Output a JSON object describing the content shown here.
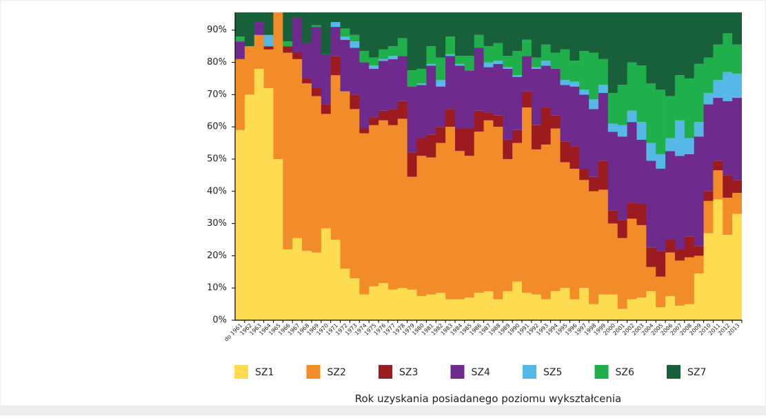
{
  "chart_data": {
    "type": "stacked_bar",
    "x_label": "Rok uzyskania posiadanego poziomu wykształcenia",
    "categories": [
      "do 1961",
      "1962",
      "1963",
      "1964",
      "1965",
      "1966",
      "1967",
      "1968",
      "1969",
      "1970",
      "1971",
      "1972",
      "1973",
      "1974",
      "1975",
      "1976",
      "1977",
      "1978",
      "1979",
      "1980",
      "1981",
      "1982",
      "1983",
      "1984",
      "1985",
      "1986",
      "1987",
      "1988",
      "1989",
      "1990",
      "1991",
      "1992",
      "1993",
      "1994",
      "1995",
      "1996",
      "1997",
      "1998",
      "1999",
      "2000",
      "2001",
      "2002",
      "2003",
      "2004",
      "2005",
      "2006",
      "2007",
      "2008",
      "2009",
      "2010",
      "2011",
      "2012",
      "2013"
    ],
    "ylim": [
      0,
      95.5
    ],
    "yticks": [
      {
        "value": 0,
        "label": "0%"
      },
      {
        "value": 10,
        "label": "10%"
      },
      {
        "value": 20,
        "label": "20%"
      },
      {
        "value": 30,
        "label": "30%"
      },
      {
        "value": 40,
        "label": "40%"
      },
      {
        "value": 50,
        "label": "50%"
      },
      {
        "value": 60,
        "label": "60%"
      },
      {
        "value": 70,
        "label": "70%"
      },
      {
        "value": 80,
        "label": "80%"
      },
      {
        "value": 90,
        "label": "90%"
      }
    ],
    "series": [
      {
        "name": "SZ1",
        "color": "#fddc4f",
        "values": [
          59,
          70,
          78,
          72,
          50,
          22,
          25.5,
          21.5,
          21,
          28.5,
          25,
          16,
          13,
          8,
          10.5,
          11.5,
          9.5,
          10,
          9.5,
          7.5,
          8,
          8.5,
          6.5,
          6.5,
          7,
          8.5,
          9,
          6.5,
          9,
          12,
          8.5,
          8,
          6.5,
          9,
          10,
          6.5,
          10,
          5,
          8,
          8,
          3.5,
          6.5,
          7,
          9,
          4,
          7.5,
          4.5,
          5,
          14.5,
          27,
          37.5,
          26.5,
          33
        ]
      },
      {
        "name": "SZ2",
        "color": "#f28c28",
        "values": [
          22,
          15,
          10.5,
          12,
          50,
          61,
          55.5,
          52,
          48.5,
          35.5,
          51,
          55,
          52.5,
          50,
          50,
          50.5,
          51,
          52.5,
          35,
          43.5,
          42.5,
          46.5,
          53.5,
          46,
          44,
          50,
          53,
          53.5,
          41,
          43,
          57.5,
          45,
          48,
          50.5,
          39,
          40.5,
          33.5,
          35,
          32.5,
          22,
          22,
          25,
          22.5,
          7.5,
          9.5,
          13.5,
          14,
          14.5,
          5.5,
          10,
          9,
          11.5,
          6.5
        ]
      },
      {
        "name": "SZ3",
        "color": "#9b1b1f",
        "values": [
          0,
          0,
          0,
          1,
          0,
          2,
          2,
          1.5,
          2.5,
          3,
          6,
          0,
          4.5,
          1.5,
          2.5,
          3,
          5,
          5.5,
          7.5,
          5.5,
          7,
          5,
          5.5,
          7,
          8.5,
          6.5,
          2.5,
          3.5,
          6,
          4,
          5,
          7.5,
          11.5,
          4,
          6.5,
          7,
          3.5,
          4.5,
          9,
          4,
          5.5,
          5,
          6.5,
          6,
          8,
          4,
          3.5,
          6.5,
          3,
          3,
          3,
          7,
          4
        ]
      },
      {
        "name": "SZ4",
        "color": "#6f2a8e",
        "values": [
          5.5,
          0,
          4,
          0,
          0,
          0,
          11,
          11,
          19,
          15.5,
          9,
          16,
          14.5,
          20.5,
          15,
          15.5,
          15.5,
          14,
          20.5,
          16.5,
          21.5,
          12.5,
          16.5,
          19.5,
          18,
          19.5,
          14,
          16,
          22,
          16.5,
          11,
          17.5,
          13,
          14.5,
          17.5,
          18.5,
          23,
          21,
          21,
          24.5,
          26,
          25,
          20,
          27,
          25.5,
          27.5,
          29,
          25.5,
          34,
          27,
          19.5,
          23,
          25.5
        ]
      },
      {
        "name": "SZ5",
        "color": "#55b8e6",
        "values": [
          0,
          0,
          0,
          3.5,
          0,
          0,
          0,
          0,
          0,
          0,
          1.5,
          1,
          2,
          0,
          1,
          0.5,
          1,
          0,
          0,
          0.5,
          0.5,
          2,
          0.5,
          0.5,
          0,
          0,
          1.5,
          1,
          0.5,
          0.5,
          0,
          0.5,
          1.5,
          0,
          1.5,
          1.5,
          1.5,
          3,
          2.5,
          2.5,
          3.5,
          3.5,
          5.5,
          5.5,
          4.5,
          4,
          11,
          5,
          4.5,
          3.5,
          5.5,
          9,
          7.5
        ]
      },
      {
        "name": "SZ6",
        "color": "#20b04b",
        "values": [
          1.5,
          0,
          0,
          0,
          0,
          1.5,
          0,
          0,
          0.5,
          0,
          0,
          2.5,
          2,
          3.5,
          2.5,
          3,
          3,
          5.5,
          5,
          4.5,
          5.5,
          7,
          5.5,
          2.5,
          4.5,
          4,
          5,
          5.5,
          3.5,
          7.5,
          5,
          3,
          5,
          5,
          9.5,
          6.5,
          12,
          14.5,
          8,
          9.5,
          12.5,
          15,
          17.5,
          18.5,
          20,
          13,
          14,
          18.5,
          18,
          11,
          11,
          12,
          9
        ]
      },
      {
        "name": "SZ7",
        "color": "#17603a",
        "values": [
          12,
          15,
          7.5,
          11.5,
          0,
          13.5,
          6,
          14,
          8.5,
          17.5,
          7.5,
          9.5,
          11.5,
          16.5,
          18.5,
          16,
          15,
          12.5,
          22.5,
          22,
          15,
          18.5,
          12,
          18,
          18,
          11.5,
          15,
          14,
          18,
          16.5,
          13,
          18.5,
          14.5,
          17,
          16,
          19.5,
          16.5,
          17,
          19,
          29.5,
          27,
          20,
          21,
          26.5,
          28.5,
          30.5,
          24,
          25,
          20.5,
          18.5,
          14,
          11,
          14.5
        ]
      }
    ]
  }
}
